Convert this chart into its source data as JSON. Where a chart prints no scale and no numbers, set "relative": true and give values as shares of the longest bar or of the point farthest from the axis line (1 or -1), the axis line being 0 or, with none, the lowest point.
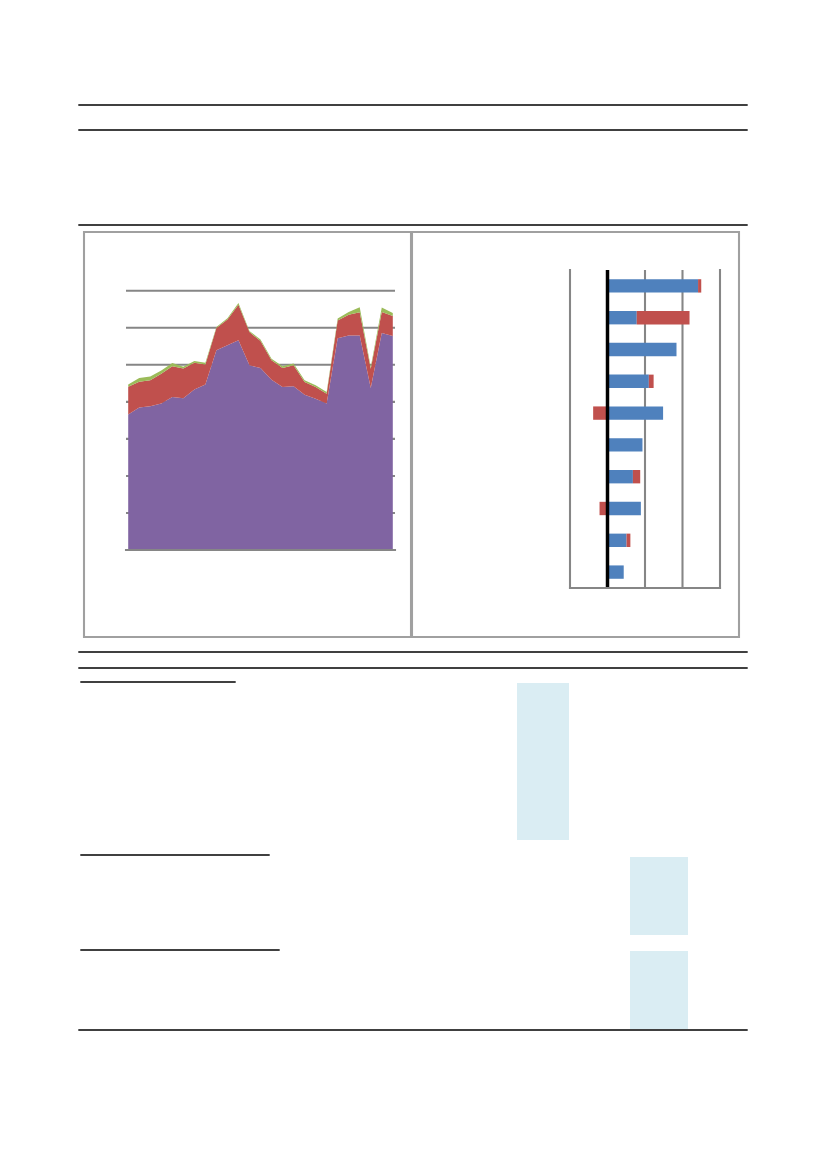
{
  "chart_data": [
    {
      "type": "area",
      "stacked": true,
      "relative": true,
      "grid": "y",
      "legend": false,
      "categories": [
        null,
        null,
        null,
        null,
        null,
        null,
        null,
        null,
        null,
        null,
        null,
        null,
        null,
        null,
        null,
        null,
        null,
        null,
        null,
        null,
        null,
        null,
        null,
        null,
        null
      ],
      "series": [
        {
          "color": "#8064a2",
          "values": [
            0.549,
            0.577,
            0.582,
            0.593,
            0.62,
            0.615,
            0.65,
            0.67,
            0.809,
            0.829,
            0.849,
            0.748,
            0.737,
            0.69,
            0.66,
            0.663,
            0.629,
            0.613,
            0.593,
            0.858,
            0.869,
            0.869,
            0.656,
            0.879,
            0.867
          ]
        },
        {
          "color": "#c0504d",
          "values": [
            0.112,
            0.104,
            0.105,
            0.121,
            0.124,
            0.12,
            0.108,
            0.081,
            0.09,
            0.105,
            0.144,
            0.135,
            0.109,
            0.078,
            0.077,
            0.085,
            0.051,
            0.047,
            0.04,
            0.071,
            0.084,
            0.094,
            0.078,
            0.085,
            0.081
          ]
        },
        {
          "color": "#9bbb59",
          "values": [
            0.009,
            0.016,
            0.016,
            0.013,
            0.013,
            0.007,
            0.007,
            0.007,
            0.004,
            0.005,
            0.007,
            0.004,
            0.007,
            0.007,
            0.007,
            0.007,
            0.007,
            0.007,
            0.007,
            0.009,
            0.011,
            0.02,
            0.007,
            0.018,
            0.012
          ]
        }
      ]
    },
    {
      "type": "bar",
      "orientation": "horizontal",
      "stacked": true,
      "relative": true,
      "legend": false,
      "ref_lines": [
        {
          "axis": "x",
          "value": 0.4,
          "color": "#868686"
        },
        {
          "axis": "x",
          "value": 0.8,
          "color": "#868686"
        }
      ],
      "categories": [
        null,
        null,
        null,
        null,
        null,
        null,
        null,
        null,
        null,
        null
      ],
      "series": [
        {
          "color": "#4f81bd",
          "values": [
            0.966,
            0.312,
            0.736,
            0.441,
            0.593,
            0.373,
            0.271,
            0.356,
            0.203,
            0.173
          ]
        },
        {
          "color": "#c0504d",
          "values": [
            0.034,
            0.563,
            0,
            0.051,
            -0.153,
            0,
            0.078,
            -0.085,
            0.041,
            0
          ]
        }
      ]
    }
  ]
}
